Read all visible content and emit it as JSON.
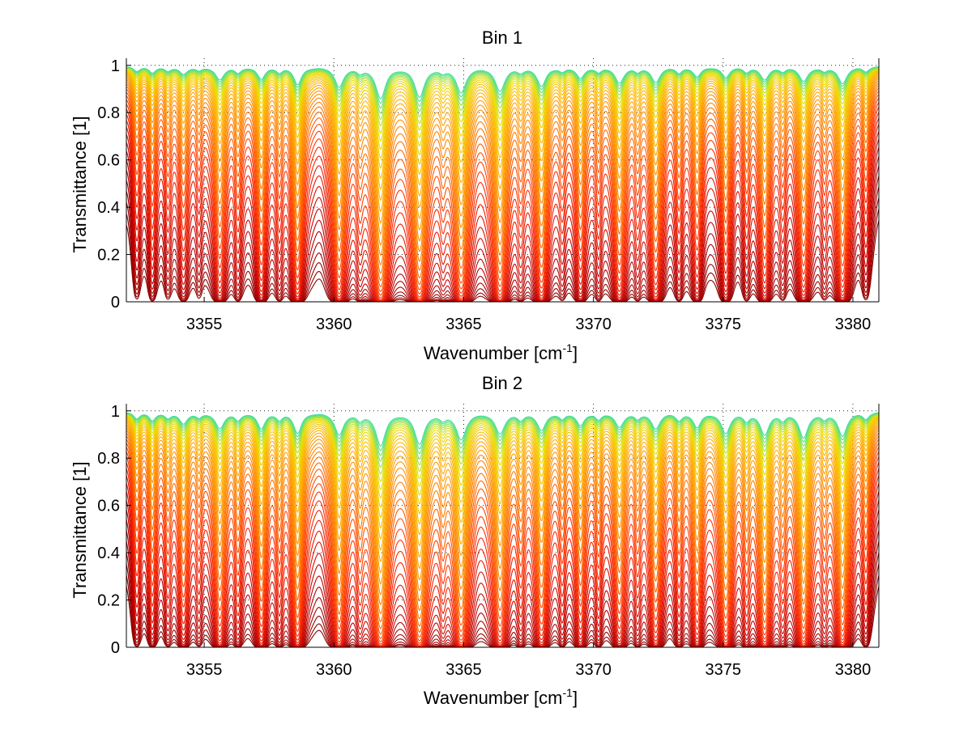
{
  "chart_data": [
    {
      "type": "line",
      "title": "Bin 1",
      "xlabel": "Wavenumber [cm",
      "xlabel_sup": "-1",
      "xlabel_end": "]",
      "ylabel": "Transmittance [1]",
      "xlim": [
        3352,
        3381
      ],
      "ylim": [
        0,
        1.03
      ],
      "xticks": [
        3355,
        3360,
        3365,
        3370,
        3375,
        3380
      ],
      "xtick_labels": [
        "3355",
        "3360",
        "3365",
        "3370",
        "3375",
        "3380"
      ],
      "yticks": [
        0,
        0.2,
        0.4,
        0.6,
        0.8,
        1
      ],
      "ytick_labels": [
        "0",
        "0.2",
        "0.4",
        "0.6",
        "0.8",
        "1"
      ],
      "grid": true,
      "series_count": 40,
      "colormap": [
        "#8b0000",
        "#c40000",
        "#ff2a00",
        "#ff7a00",
        "#ffb000",
        "#e8e000",
        "#40e0a0"
      ],
      "absorption_lines": [
        {
          "center": 3352.4,
          "depth": 0.6,
          "width": 0.15
        },
        {
          "center": 3353.0,
          "depth": 0.75,
          "width": 0.15
        },
        {
          "center": 3353.6,
          "depth": 0.55,
          "width": 0.15
        },
        {
          "center": 3354.2,
          "depth": 0.9,
          "width": 0.18
        },
        {
          "center": 3354.8,
          "depth": 0.45,
          "width": 0.14
        },
        {
          "center": 3355.6,
          "depth": 1.6,
          "width": 0.2
        },
        {
          "center": 3356.3,
          "depth": 0.7,
          "width": 0.15
        },
        {
          "center": 3357.2,
          "depth": 1.5,
          "width": 0.18
        },
        {
          "center": 3357.9,
          "depth": 0.6,
          "width": 0.14
        },
        {
          "center": 3358.6,
          "depth": 2.2,
          "width": 0.18
        },
        {
          "center": 3360.2,
          "depth": 2.5,
          "width": 0.2
        },
        {
          "center": 3361.0,
          "depth": 0.6,
          "width": 0.15
        },
        {
          "center": 3361.8,
          "depth": 4.0,
          "width": 0.22
        },
        {
          "center": 3363.3,
          "depth": 3.8,
          "width": 0.22
        },
        {
          "center": 3364.2,
          "depth": 0.5,
          "width": 0.15
        },
        {
          "center": 3364.9,
          "depth": 3.2,
          "width": 0.22
        },
        {
          "center": 3366.4,
          "depth": 3.0,
          "width": 0.22
        },
        {
          "center": 3367.2,
          "depth": 0.55,
          "width": 0.15
        },
        {
          "center": 3368.0,
          "depth": 2.4,
          "width": 0.2
        },
        {
          "center": 3368.8,
          "depth": 0.5,
          "width": 0.14
        },
        {
          "center": 3369.5,
          "depth": 1.4,
          "width": 0.18
        },
        {
          "center": 3370.2,
          "depth": 0.6,
          "width": 0.14
        },
        {
          "center": 3371.0,
          "depth": 2.0,
          "width": 0.2
        },
        {
          "center": 3371.7,
          "depth": 0.55,
          "width": 0.14
        },
        {
          "center": 3372.4,
          "depth": 1.9,
          "width": 0.2
        },
        {
          "center": 3373.3,
          "depth": 0.7,
          "width": 0.15
        },
        {
          "center": 3374.0,
          "depth": 1.2,
          "width": 0.18
        },
        {
          "center": 3375.1,
          "depth": 1.3,
          "width": 0.18
        },
        {
          "center": 3375.9,
          "depth": 0.6,
          "width": 0.14
        },
        {
          "center": 3376.6,
          "depth": 1.6,
          "width": 0.2
        },
        {
          "center": 3377.3,
          "depth": 0.5,
          "width": 0.14
        },
        {
          "center": 3378.1,
          "depth": 1.8,
          "width": 0.2
        },
        {
          "center": 3378.9,
          "depth": 0.5,
          "width": 0.14
        },
        {
          "center": 3379.6,
          "depth": 2.1,
          "width": 0.2
        },
        {
          "center": 3380.5,
          "depth": 0.6,
          "width": 0.15
        }
      ]
    },
    {
      "type": "line",
      "title": "Bin 2",
      "xlabel": "Wavenumber [cm",
      "xlabel_sup": "-1",
      "xlabel_end": "]",
      "ylabel": "Transmittance [1]",
      "xlim": [
        3352,
        3381
      ],
      "ylim": [
        0,
        1.03
      ],
      "xticks": [
        3355,
        3360,
        3365,
        3370,
        3375,
        3380
      ],
      "xtick_labels": [
        "3355",
        "3360",
        "3365",
        "3370",
        "3375",
        "3380"
      ],
      "yticks": [
        0,
        0.2,
        0.4,
        0.6,
        0.8,
        1
      ],
      "ytick_labels": [
        "0",
        "0.2",
        "0.4",
        "0.6",
        "0.8",
        "1"
      ],
      "grid": true,
      "series_count": 40,
      "colormap": [
        "#8b0000",
        "#c40000",
        "#ff2a00",
        "#ff7a00",
        "#ffb000",
        "#e8e000",
        "#40e0a0"
      ],
      "absorption_lines": [
        {
          "center": 3352.4,
          "depth": 0.8,
          "width": 0.15
        },
        {
          "center": 3353.0,
          "depth": 1.0,
          "width": 0.15
        },
        {
          "center": 3353.6,
          "depth": 0.7,
          "width": 0.15
        },
        {
          "center": 3354.2,
          "depth": 1.4,
          "width": 0.18
        },
        {
          "center": 3354.8,
          "depth": 0.6,
          "width": 0.14
        },
        {
          "center": 3355.6,
          "depth": 2.0,
          "width": 0.2
        },
        {
          "center": 3356.3,
          "depth": 0.9,
          "width": 0.15
        },
        {
          "center": 3357.2,
          "depth": 2.0,
          "width": 0.18
        },
        {
          "center": 3357.9,
          "depth": 0.8,
          "width": 0.14
        },
        {
          "center": 3358.6,
          "depth": 2.6,
          "width": 0.18
        },
        {
          "center": 3360.2,
          "depth": 2.8,
          "width": 0.2
        },
        {
          "center": 3361.0,
          "depth": 0.8,
          "width": 0.15
        },
        {
          "center": 3361.8,
          "depth": 4.2,
          "width": 0.22
        },
        {
          "center": 3363.3,
          "depth": 4.0,
          "width": 0.22
        },
        {
          "center": 3364.2,
          "depth": 0.7,
          "width": 0.15
        },
        {
          "center": 3364.9,
          "depth": 3.4,
          "width": 0.22
        },
        {
          "center": 3366.4,
          "depth": 2.6,
          "width": 0.22
        },
        {
          "center": 3367.2,
          "depth": 0.8,
          "width": 0.15
        },
        {
          "center": 3368.0,
          "depth": 2.2,
          "width": 0.2
        },
        {
          "center": 3368.8,
          "depth": 0.7,
          "width": 0.14
        },
        {
          "center": 3369.5,
          "depth": 1.6,
          "width": 0.18
        },
        {
          "center": 3370.2,
          "depth": 0.8,
          "width": 0.14
        },
        {
          "center": 3371.0,
          "depth": 1.8,
          "width": 0.2
        },
        {
          "center": 3371.7,
          "depth": 0.7,
          "width": 0.14
        },
        {
          "center": 3372.4,
          "depth": 2.0,
          "width": 0.2
        },
        {
          "center": 3373.3,
          "depth": 0.9,
          "width": 0.15
        },
        {
          "center": 3374.0,
          "depth": 1.8,
          "width": 0.18
        },
        {
          "center": 3375.1,
          "depth": 2.6,
          "width": 0.2
        },
        {
          "center": 3375.9,
          "depth": 0.9,
          "width": 0.14
        },
        {
          "center": 3376.6,
          "depth": 2.8,
          "width": 0.2
        },
        {
          "center": 3377.3,
          "depth": 0.8,
          "width": 0.14
        },
        {
          "center": 3378.1,
          "depth": 3.2,
          "width": 0.2
        },
        {
          "center": 3378.9,
          "depth": 0.7,
          "width": 0.14
        },
        {
          "center": 3379.6,
          "depth": 3.0,
          "width": 0.2
        },
        {
          "center": 3380.5,
          "depth": 0.8,
          "width": 0.15
        }
      ]
    }
  ]
}
